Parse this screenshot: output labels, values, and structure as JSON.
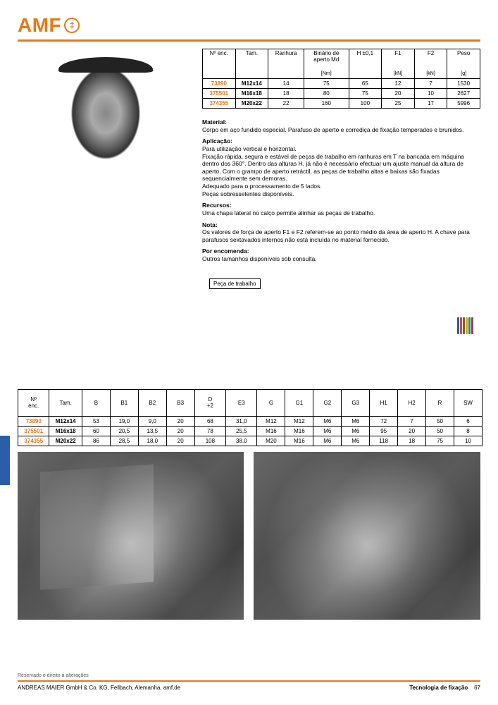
{
  "logo": {
    "text": "AMF",
    "icon_glyph": "‡"
  },
  "table1": {
    "headers": [
      "Nº enc.",
      "Tam.",
      "Ranhura",
      "Binário de aperto Md [Nm]",
      "H ±0,1",
      "F1 [kN]",
      "F2 [kN]",
      "Peso [g]"
    ],
    "rows": [
      {
        "enc": "73890",
        "tam": "M12x14",
        "cells": [
          "14",
          "75",
          "65",
          "12",
          "7",
          "1530"
        ]
      },
      {
        "enc": "375501",
        "tam": "M16x18",
        "cells": [
          "18",
          "80",
          "75",
          "20",
          "10",
          "2627"
        ]
      },
      {
        "enc": "374355",
        "tam": "M20x22",
        "cells": [
          "22",
          "160",
          "100",
          "25",
          "17",
          "5996"
        ]
      }
    ],
    "col_widths": [
      "44px",
      "44px",
      "48px",
      "60px",
      "44px",
      "44px",
      "44px",
      "44px"
    ]
  },
  "material": {
    "title": "Material:",
    "body1": "Corpo em aço fundido especial. Parafuso de aperto e corrediça de fixação temperados e brunidos.",
    "title2": "Aplicação:",
    "body2": [
      "Para utilização vertical e horizontal.",
      "Fixação rápida, segura e estável de peças de trabalho em ranhuras em T na bancada em máquina dentro dos 360°. Dentro das alturas H, já não é necessário efectuar um ajuste manual da altura de aperto. Com o grampo de aperto retráctil, as peças de trabalho altas e baixas são fixadas sequencialmente sem demoras.",
      "Adequado para o processamento de 5 lados.",
      "Peças sobresselentes disponíveis."
    ],
    "title3": "Recursos:",
    "body3": "Uma chapa lateral no calço permite alinhar as peças de trabalho.",
    "title4": "Nota:",
    "body4": "Os valores de força de aperto F1 e F2 referem-se ao ponto médio da área de aperto H. A chave para parafusos sextavados internos não está incluída no material fornecido.",
    "title5": "Por encomenda:",
    "body5": "Outros tamanhos disponíveis sob consulta."
  },
  "label_box": "Peça de trabalho",
  "chip_colors": [
    "#2c5aa0",
    "#d94545",
    "#8a5a2b",
    "#d4a72c",
    "#3a8a3a",
    "#8a3a8a"
  ],
  "table2": {
    "headers": [
      "Nº enc.",
      "Tam.",
      "B",
      "B1",
      "B2",
      "B3",
      "D +2",
      "E3",
      "G",
      "G1",
      "G2",
      "G3",
      "H1",
      "H2",
      "R",
      "SW"
    ],
    "rows": [
      {
        "enc": "73890",
        "tam": "M12x14",
        "cells": [
          "53",
          "19,0",
          "9,0",
          "20",
          "68",
          "31,0",
          "M12",
          "M12",
          "M6",
          "M6",
          "72",
          "7",
          "50",
          "6"
        ]
      },
      {
        "enc": "375501",
        "tam": "M16x18",
        "cells": [
          "60",
          "20,5",
          "13,5",
          "20",
          "78",
          "25,5",
          "M16",
          "M16",
          "M6",
          "M6",
          "95",
          "20",
          "50",
          "8"
        ]
      },
      {
        "enc": "374355",
        "tam": "M20x22",
        "cells": [
          "86",
          "28,5",
          "18,0",
          "20",
          "108",
          "38,0",
          "M20",
          "M16",
          "M6",
          "M6",
          "118",
          "18",
          "75",
          "10"
        ]
      }
    ],
    "col_widths": [
      "40px",
      "42px",
      "36px",
      "36px",
      "36px",
      "36px",
      "40px",
      "40px",
      "36px",
      "36px",
      "36px",
      "36px",
      "36px",
      "36px",
      "36px",
      "36px"
    ]
  },
  "footer": {
    "disclaimer": "Reservado o direito a alterações",
    "left": "ANDREAS MAIER GmbH & Co. KG, Fellbach, Alemanha, amf.de",
    "right_label": "Tecnologia de fixação",
    "page": "67"
  }
}
